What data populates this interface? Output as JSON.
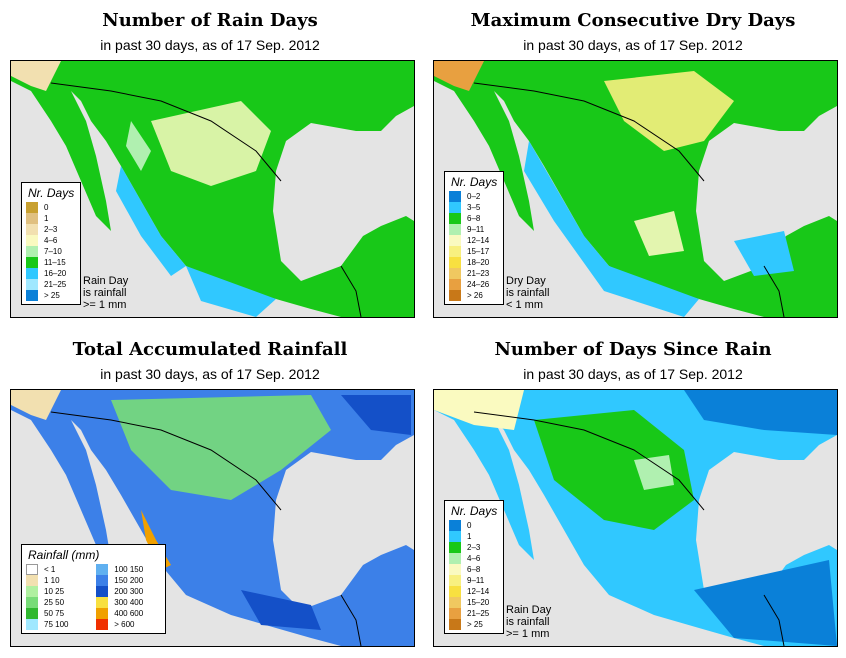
{
  "panels": [
    {
      "title": "Number of Rain Days",
      "subtitle": "in past 30 days, as of  17 Sep. 2012",
      "legend": {
        "title": "Nr. Days",
        "items": [
          {
            "label": "0",
            "color": "#c8a030"
          },
          {
            "label": "1",
            "color": "#e0c080"
          },
          {
            "label": "2–3",
            "color": "#f2e0b0"
          },
          {
            "label": "4–6",
            "color": "#fafac0"
          },
          {
            "label": "7–10",
            "color": "#b0f0b0"
          },
          {
            "label": "11–15",
            "color": "#18c818"
          },
          {
            "label": "16–20",
            "color": "#30c8ff"
          },
          {
            "label": "21–25",
            "color": "#a0e8ff"
          },
          {
            "label": "> 25",
            "color": "#0a80d8"
          }
        ]
      },
      "note": [
        "Rain Day",
        "is rainfall",
        ">= 1 mm"
      ]
    },
    {
      "title": "Maximum Consecutive Dry Days",
      "subtitle": "in past 30 days, as of  17 Sep. 2012",
      "legend": {
        "title": "Nr. Days",
        "items": [
          {
            "label": "0–2",
            "color": "#0a80d8"
          },
          {
            "label": "3–5",
            "color": "#30c8ff"
          },
          {
            "label": "6–8",
            "color": "#18c818"
          },
          {
            "label": "9–11",
            "color": "#b0f0b0"
          },
          {
            "label": "12–14",
            "color": "#fafac0"
          },
          {
            "label": "15–17",
            "color": "#f8f080"
          },
          {
            "label": "18–20",
            "color": "#f8e040"
          },
          {
            "label": "21–23",
            "color": "#f0c860"
          },
          {
            "label": "24–26",
            "color": "#e8a040"
          },
          {
            "label": "> 26",
            "color": "#c87818"
          }
        ]
      },
      "note": [
        "Dry Day",
        "is rainfall",
        "< 1 mm"
      ]
    },
    {
      "title": "Total Accumulated Rainfall",
      "subtitle": "in past 30 days, as of  17 Sep. 2012",
      "legend": {
        "title": "Rainfall (mm)",
        "items": [
          {
            "label": "< 1",
            "color": "#ffffff"
          },
          {
            "label": "1    10",
            "color": "#f2e0b0"
          },
          {
            "label": "10    25",
            "color": "#b0f0a0"
          },
          {
            "label": "25    50",
            "color": "#78dc78"
          },
          {
            "label": "50    75",
            "color": "#30b830"
          },
          {
            "label": "75    100",
            "color": "#a0e8ff"
          },
          {
            "label": "100   150",
            "color": "#60b0f0"
          },
          {
            "label": "150   200",
            "color": "#3c80e8"
          },
          {
            "label": "200   300",
            "color": "#1450c8"
          },
          {
            "label": "300   400",
            "color": "#f8e040"
          },
          {
            "label": "400   600",
            "color": "#f0a000"
          },
          {
            "label": "> 600",
            "color": "#f03000"
          }
        ]
      },
      "note": []
    },
    {
      "title": "Number of Days Since Rain",
      "subtitle": "in past 30 days, as of  17 Sep. 2012",
      "legend": {
        "title": "Nr. Days",
        "items": [
          {
            "label": "0",
            "color": "#0a80d8"
          },
          {
            "label": "1",
            "color": "#30c8ff"
          },
          {
            "label": "2–3",
            "color": "#18c818"
          },
          {
            "label": "4–6",
            "color": "#b0f0b0"
          },
          {
            "label": "6–8",
            "color": "#fafac0"
          },
          {
            "label": "9–11",
            "color": "#f8f080"
          },
          {
            "label": "12–14",
            "color": "#f8e040"
          },
          {
            "label": "15–20",
            "color": "#f0c860"
          },
          {
            "label": "21–25",
            "color": "#e8a040"
          },
          {
            "label": "> 25",
            "color": "#c87818"
          }
        ]
      },
      "note": [
        "Rain Day",
        "is rainfall",
        ">= 1 mm"
      ]
    }
  ]
}
